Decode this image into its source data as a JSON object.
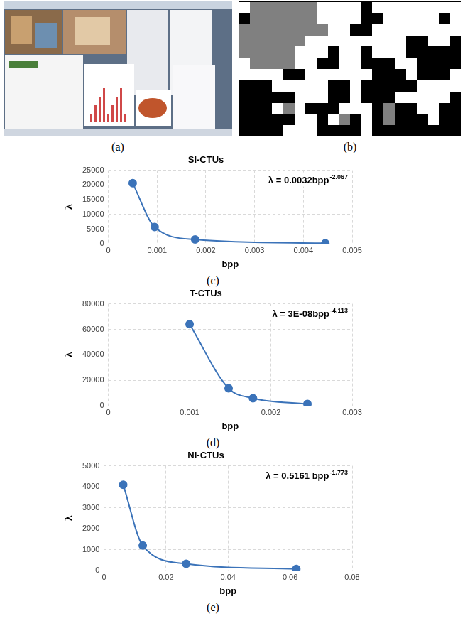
{
  "images": [
    {
      "caption": "(a)"
    },
    {
      "caption": "(b)",
      "colors": [
        "#ffffff",
        "#808080",
        "#000000"
      ],
      "cells": [
        [
          0,
          1,
          1,
          1,
          1,
          1,
          1,
          0,
          0,
          0,
          0,
          2,
          0,
          0,
          0,
          0,
          0,
          0,
          0,
          0
        ],
        [
          2,
          1,
          1,
          1,
          1,
          1,
          1,
          0,
          0,
          0,
          0,
          2,
          2,
          0,
          0,
          0,
          0,
          0,
          2,
          0
        ],
        [
          1,
          1,
          1,
          1,
          1,
          1,
          1,
          1,
          0,
          0,
          2,
          2,
          0,
          0,
          0,
          0,
          0,
          0,
          0,
          0
        ],
        [
          1,
          1,
          1,
          1,
          1,
          1,
          0,
          0,
          0,
          0,
          0,
          0,
          0,
          0,
          0,
          2,
          2,
          0,
          0,
          2
        ],
        [
          1,
          1,
          1,
          1,
          1,
          0,
          0,
          0,
          2,
          0,
          0,
          2,
          0,
          0,
          0,
          2,
          2,
          2,
          2,
          2
        ],
        [
          0,
          1,
          1,
          1,
          1,
          0,
          0,
          2,
          2,
          0,
          0,
          2,
          2,
          2,
          0,
          0,
          2,
          2,
          2,
          2
        ],
        [
          0,
          0,
          0,
          0,
          2,
          2,
          0,
          0,
          0,
          0,
          0,
          0,
          2,
          2,
          2,
          0,
          2,
          2,
          2,
          0
        ],
        [
          2,
          2,
          2,
          0,
          0,
          0,
          0,
          0,
          2,
          2,
          0,
          2,
          2,
          2,
          2,
          2,
          0,
          0,
          0,
          0
        ],
        [
          2,
          2,
          2,
          2,
          2,
          0,
          0,
          0,
          2,
          2,
          0,
          2,
          2,
          2,
          0,
          0,
          0,
          0,
          0,
          2
        ],
        [
          2,
          2,
          2,
          0,
          1,
          0,
          2,
          2,
          2,
          0,
          0,
          0,
          2,
          1,
          2,
          2,
          0,
          0,
          2,
          2
        ],
        [
          2,
          2,
          2,
          2,
          2,
          0,
          0,
          2,
          0,
          1,
          2,
          0,
          2,
          1,
          2,
          2,
          2,
          0,
          2,
          2
        ],
        [
          2,
          2,
          2,
          2,
          0,
          0,
          0,
          2,
          2,
          2,
          2,
          0,
          2,
          2,
          2,
          2,
          2,
          2,
          2,
          2
        ]
      ]
    }
  ],
  "chart_data": [
    {
      "type": "scatter",
      "caption": "(c)",
      "title": "SI-CTUs",
      "x_label": "bpp",
      "y_label": "λ",
      "x": [
        0.0005,
        0.00095,
        0.00178,
        0.00445
      ],
      "values": [
        20600,
        5700,
        1500,
        200
      ],
      "color": "#3b73b9",
      "marker": "circle",
      "line_style": "solid",
      "annotation": {
        "text": "λ = 0.0032bpp",
        "superscript": "-2.067"
      },
      "xlim": [
        0,
        0.005
      ],
      "xticks": [
        0,
        0.001,
        0.002,
        0.003,
        0.004,
        0.005
      ],
      "ylim": [
        0,
        25000
      ],
      "yticks": [
        0,
        5000,
        10000,
        15000,
        20000,
        25000
      ],
      "grid": true
    },
    {
      "type": "scatter",
      "caption": "(d)",
      "title": "T-CTUs",
      "x_label": "bpp",
      "y_label": "λ",
      "x": [
        0.001,
        0.00148,
        0.00178,
        0.00245
      ],
      "values": [
        64000,
        13800,
        6000,
        1500
      ],
      "color": "#3b73b9",
      "marker": "circle",
      "line_style": "solid",
      "annotation": {
        "text": "λ = 3E-08bpp",
        "superscript": "-4.113"
      },
      "xlim": [
        0,
        0.003
      ],
      "xticks": [
        0,
        0.001,
        0.002,
        0.003
      ],
      "ylim": [
        0,
        80000
      ],
      "yticks": [
        0,
        20000,
        40000,
        60000,
        80000
      ],
      "grid": true
    },
    {
      "type": "scatter",
      "caption": "(e)",
      "title": "NI-CTUs",
      "x_label": "bpp",
      "y_label": "λ",
      "x": [
        0.0062,
        0.0125,
        0.0265,
        0.062
      ],
      "values": [
        4100,
        1200,
        330,
        80
      ],
      "color": "#3b73b9",
      "marker": "circle",
      "line_style": "solid",
      "annotation": {
        "text": "λ = 0.5161 bpp",
        "superscript": "-1.773"
      },
      "xlim": [
        0,
        0.08
      ],
      "xticks": [
        0,
        0.02,
        0.04,
        0.06,
        0.08
      ],
      "ylim": [
        0,
        5000
      ],
      "yticks": [
        0,
        1000,
        2000,
        3000,
        4000,
        5000
      ],
      "grid": true
    }
  ]
}
